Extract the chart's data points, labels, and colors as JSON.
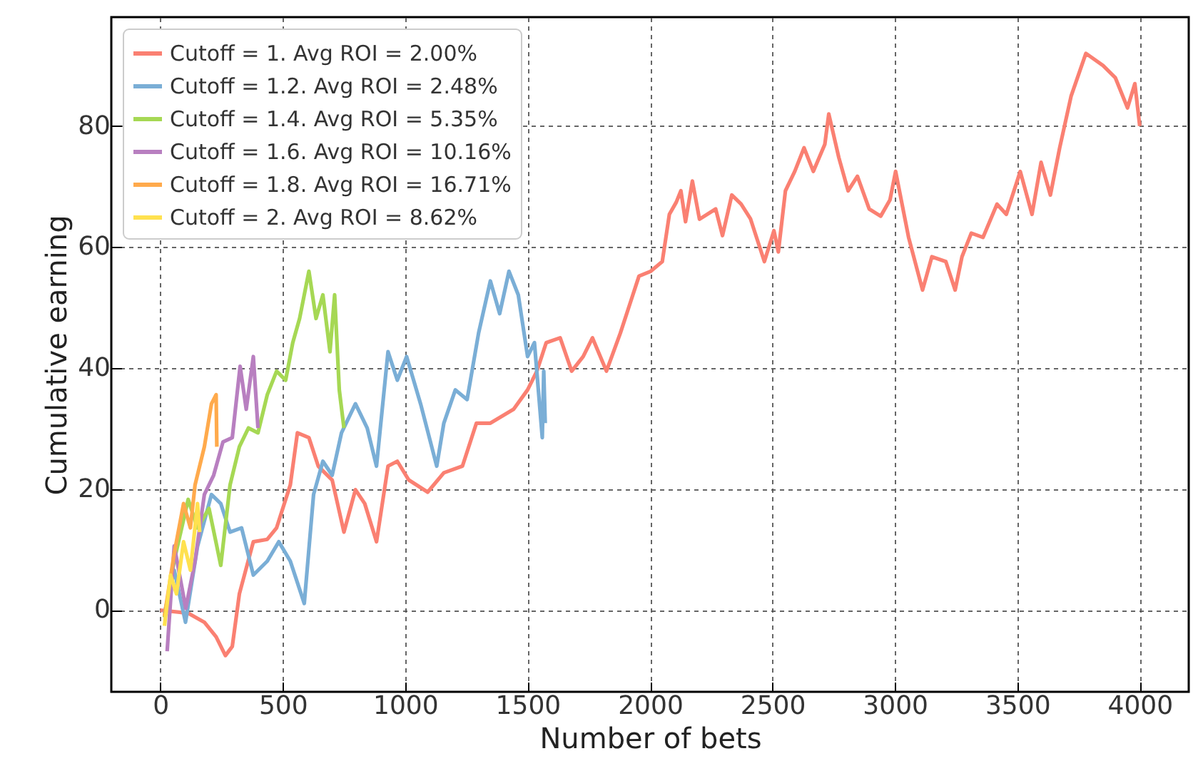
{
  "chart_data": {
    "type": "line",
    "xlabel": "Number of bets",
    "ylabel": "Cumulative earning",
    "xlim": [
      -200,
      4200
    ],
    "ylim": [
      -13.5,
      98
    ],
    "xticks": [
      0,
      500,
      1000,
      1500,
      2000,
      2500,
      3000,
      3500,
      4000
    ],
    "yticks": [
      0,
      20,
      40,
      60,
      80
    ],
    "grid": true,
    "legend": "top left",
    "marker": "none",
    "line_style": "solid",
    "series": [
      {
        "name": "Cutoff = 1. Avg ROI = 2.00%",
        "color": "#fa8072",
        "x": [
          0,
          114,
          180,
          228,
          266,
          294,
          323,
          380,
          437,
          475,
          531,
          560,
          607,
          645,
          702,
          750,
          797,
          835,
          883,
          930,
          968,
          1015,
          1092,
          1158,
          1234,
          1291,
          1348,
          1443,
          1500,
          1538,
          1576,
          1633,
          1680,
          1727,
          1765,
          1822,
          1879,
          1917,
          1955,
          2003,
          2050,
          2079,
          2107,
          2126,
          2145,
          2173,
          2202,
          2268,
          2296,
          2334,
          2372,
          2410,
          2467,
          2506,
          2524,
          2553,
          2591,
          2629,
          2667,
          2714,
          2730,
          2771,
          2809,
          2847,
          2895,
          2942,
          2980,
          3003,
          3056,
          3113,
          3151,
          3208,
          3246,
          3274,
          3312,
          3360,
          3417,
          3455,
          3512,
          3560,
          3597,
          3635,
          3673,
          3720,
          3780,
          3850,
          3900,
          3950,
          3980,
          4000
        ],
        "values": [
          0,
          -0.5,
          -2,
          -4.4,
          -7.5,
          -6,
          2.7,
          11.3,
          11.7,
          13.6,
          20.7,
          29.3,
          28.5,
          23.8,
          21.5,
          12.9,
          19.9,
          17.6,
          11.3,
          23.8,
          24.6,
          21.5,
          19.5,
          22.7,
          23.8,
          30.9,
          30.9,
          33.2,
          36.4,
          39.5,
          44.2,
          45,
          39.5,
          41.9,
          45,
          39.5,
          45.8,
          50.5,
          55.2,
          56,
          57.6,
          65.4,
          67.4,
          69.3,
          64.2,
          70.9,
          64.6,
          66.3,
          61.9,
          68.6,
          67.1,
          64.7,
          57.6,
          62.7,
          59.2,
          69.3,
          72.5,
          76.4,
          72.5,
          77,
          82,
          74.8,
          69.3,
          71.7,
          66.3,
          65.1,
          67.8,
          72.5,
          61.6,
          52.9,
          58.4,
          57.6,
          52.9,
          58.4,
          62.3,
          61.6,
          67.1,
          65.4,
          72.5,
          65.4,
          74,
          68.6,
          76.4,
          85,
          92,
          90,
          88,
          83,
          87,
          80
        ]
      },
      {
        "name": "Cutoff = 1.2. Avg ROI = 2.48%",
        "color": "#7aaed6",
        "x": [
          17,
          57,
          103,
          152,
          209,
          247,
          285,
          332,
          380,
          437,
          484,
          531,
          588,
          626,
          664,
          702,
          740,
          797,
          845,
          883,
          930,
          968,
          1006,
          1063,
          1129,
          1158,
          1205,
          1253,
          1300,
          1348,
          1386,
          1424,
          1462,
          1500,
          1528,
          1560,
          1566,
          1572
        ],
        "values": [
          -0.5,
          6.6,
          -2,
          10.5,
          19.1,
          17.6,
          12.9,
          13.6,
          5.8,
          8.1,
          11.3,
          8.1,
          1.1,
          19.1,
          24.6,
          22.3,
          29.3,
          34.1,
          30.1,
          23.8,
          42.7,
          38,
          41.9,
          34.1,
          23.8,
          30.9,
          36.4,
          34.8,
          45.8,
          54.4,
          49,
          56,
          52.1,
          41.9,
          44.2,
          28.5,
          39.5,
          30.9
        ]
      },
      {
        "name": "Cutoff = 1.4. Avg ROI = 5.35%",
        "color": "#a6d854",
        "x": [
          17,
          57,
          114,
          152,
          199,
          247,
          285,
          323,
          360,
          399,
          437,
          475,
          512,
          541,
          569,
          607,
          636,
          664,
          693,
          712,
          731,
          750
        ],
        "values": [
          -1.2,
          8.2,
          18.3,
          13.6,
          16.8,
          7.4,
          20.7,
          27,
          30.1,
          29.3,
          35.6,
          39.5,
          38,
          44.2,
          48.2,
          56,
          48.2,
          52.1,
          42.7,
          52.1,
          36.4,
          30.1
        ]
      },
      {
        "name": "Cutoff = 1.6. Avg ROI = 10.16%",
        "color": "#b87fc0",
        "x": [
          28,
          57,
          104,
          142,
          180,
          218,
          256,
          294,
          326,
          351,
          380,
          399
        ],
        "values": [
          -6.8,
          10.6,
          0.3,
          8.1,
          19.1,
          22.3,
          27.8,
          28.5,
          40.3,
          33.2,
          41.9,
          30.1
        ]
      },
      {
        "name": "Cutoff = 1.8. Avg ROI = 16.71%",
        "color": "#ffaa4c",
        "x": [
          17,
          57,
          95,
          123,
          142,
          180,
          209,
          228,
          231
        ],
        "values": [
          -1,
          9.4,
          17.6,
          13.6,
          20.7,
          27,
          34.1,
          35.6,
          27
        ]
      },
      {
        "name": "Cutoff = 2. Avg ROI = 8.62%",
        "color": "#ffe14f",
        "x": [
          17,
          42,
          66,
          95,
          123,
          152,
          161
        ],
        "values": [
          -2.6,
          5.8,
          2.7,
          11.3,
          6.6,
          17.6,
          12.9
        ]
      }
    ]
  }
}
